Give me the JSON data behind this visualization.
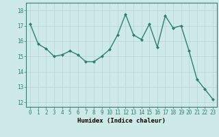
{
  "x": [
    0,
    1,
    2,
    3,
    4,
    5,
    6,
    7,
    8,
    9,
    10,
    11,
    12,
    13,
    14,
    15,
    16,
    17,
    18,
    19,
    20,
    21,
    22,
    23
  ],
  "y": [
    17.1,
    15.8,
    15.5,
    15.0,
    15.1,
    15.35,
    15.1,
    14.65,
    14.65,
    15.0,
    15.45,
    16.4,
    17.75,
    16.4,
    16.1,
    17.1,
    15.6,
    17.65,
    16.85,
    17.0,
    15.35,
    13.5,
    12.85,
    12.2
  ],
  "line_color": "#2e7d6e",
  "marker": "D",
  "marker_size": 2.0,
  "bg_color": "#ceeae8",
  "grid_color": "#b8d8d6",
  "xlabel": "Humidex (Indice chaleur)",
  "xlabel_fontsize": 6.5,
  "yticks": [
    12,
    13,
    14,
    15,
    16,
    17,
    18
  ],
  "xticks": [
    0,
    1,
    2,
    3,
    4,
    5,
    6,
    7,
    8,
    9,
    10,
    11,
    12,
    13,
    14,
    15,
    16,
    17,
    18,
    19,
    20,
    21,
    22,
    23
  ],
  "ylim": [
    11.7,
    18.5
  ],
  "xlim": [
    -0.5,
    23.5
  ],
  "tick_fontsize": 5.5,
  "linewidth": 1.0
}
